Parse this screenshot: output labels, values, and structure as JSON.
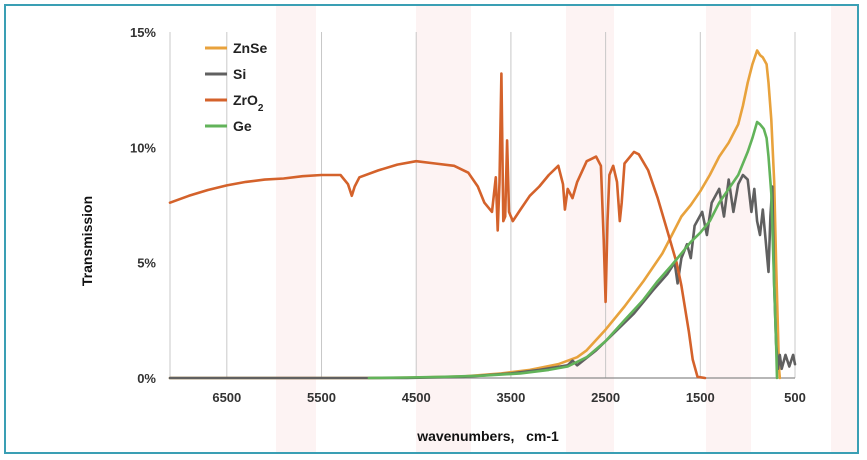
{
  "chart_data": {
    "type": "line",
    "xlabel": "wavenumbers,   cm-1",
    "ylabel": "Transmission",
    "xlim": [
      7100,
      500
    ],
    "ylim": [
      0,
      15
    ],
    "x_ticks": [
      6500,
      5500,
      4500,
      3500,
      2500,
      1500,
      500
    ],
    "x_tick_labels": [
      "6500",
      "5500",
      "4500",
      "3500",
      "2500",
      "1500",
      "500"
    ],
    "y_ticks": [
      0,
      5,
      10,
      15
    ],
    "y_tick_labels": [
      "0%",
      "5%",
      "10%",
      "15%"
    ],
    "grid": "vertical",
    "legend_position": "top-left",
    "series": [
      {
        "name": "ZnSe",
        "color": "#e8a23c",
        "points": [
          [
            7100,
            0
          ],
          [
            5000,
            0
          ],
          [
            4500,
            0.02
          ],
          [
            4000,
            0.07
          ],
          [
            3600,
            0.2
          ],
          [
            3300,
            0.35
          ],
          [
            3000,
            0.6
          ],
          [
            2800,
            0.9
          ],
          [
            2700,
            1.2
          ],
          [
            2500,
            2.1
          ],
          [
            2300,
            3.1
          ],
          [
            2100,
            4.2
          ],
          [
            1900,
            5.4
          ],
          [
            1800,
            6.2
          ],
          [
            1700,
            7.0
          ],
          [
            1600,
            7.5
          ],
          [
            1500,
            8.1
          ],
          [
            1400,
            8.8
          ],
          [
            1300,
            9.6
          ],
          [
            1200,
            10.2
          ],
          [
            1100,
            11.0
          ],
          [
            1050,
            11.8
          ],
          [
            1000,
            12.8
          ],
          [
            950,
            13.6
          ],
          [
            900,
            14.2
          ],
          [
            870,
            14.0
          ],
          [
            840,
            13.9
          ],
          [
            800,
            13.6
          ],
          [
            780,
            12.8
          ],
          [
            750,
            11.2
          ],
          [
            720,
            8.5
          ],
          [
            700,
            5.0
          ],
          [
            680,
            2.0
          ],
          [
            670,
            0.5
          ],
          [
            660,
            0
          ]
        ]
      },
      {
        "name": "Si",
        "color": "#606060",
        "points": [
          [
            7100,
            0
          ],
          [
            4600,
            0
          ],
          [
            4000,
            0.05
          ],
          [
            3500,
            0.2
          ],
          [
            3200,
            0.35
          ],
          [
            2900,
            0.55
          ],
          [
            2850,
            0.75
          ],
          [
            2800,
            0.55
          ],
          [
            2600,
            1.2
          ],
          [
            2400,
            2.0
          ],
          [
            2200,
            2.8
          ],
          [
            2000,
            3.8
          ],
          [
            1850,
            4.5
          ],
          [
            1770,
            5.0
          ],
          [
            1740,
            4.1
          ],
          [
            1700,
            5.2
          ],
          [
            1640,
            5.8
          ],
          [
            1600,
            5.2
          ],
          [
            1560,
            6.6
          ],
          [
            1480,
            7.2
          ],
          [
            1430,
            6.2
          ],
          [
            1380,
            7.6
          ],
          [
            1300,
            8.2
          ],
          [
            1250,
            7.0
          ],
          [
            1200,
            8.6
          ],
          [
            1150,
            7.2
          ],
          [
            1100,
            8.4
          ],
          [
            1050,
            8.8
          ],
          [
            1000,
            8.6
          ],
          [
            960,
            7.2
          ],
          [
            930,
            8.2
          ],
          [
            900,
            6.8
          ],
          [
            870,
            6.2
          ],
          [
            840,
            7.3
          ],
          [
            810,
            6.0
          ],
          [
            780,
            4.6
          ],
          [
            760,
            7.0
          ],
          [
            740,
            8.3
          ],
          [
            720,
            4.0
          ],
          [
            700,
            1.5
          ],
          [
            680,
            0.4
          ],
          [
            660,
            1.0
          ],
          [
            640,
            0.4
          ],
          [
            600,
            1.0
          ],
          [
            560,
            0.5
          ],
          [
            520,
            1.0
          ],
          [
            500,
            0.6
          ]
        ]
      },
      {
        "name": "ZrO2",
        "color": "#d4622b",
        "points": [
          [
            7100,
            7.6
          ],
          [
            6900,
            7.9
          ],
          [
            6700,
            8.15
          ],
          [
            6500,
            8.35
          ],
          [
            6300,
            8.5
          ],
          [
            6100,
            8.6
          ],
          [
            5900,
            8.65
          ],
          [
            5700,
            8.75
          ],
          [
            5500,
            8.8
          ],
          [
            5300,
            8.8
          ],
          [
            5220,
            8.4
          ],
          [
            5180,
            7.9
          ],
          [
            5150,
            8.3
          ],
          [
            5100,
            8.7
          ],
          [
            4900,
            9.0
          ],
          [
            4700,
            9.25
          ],
          [
            4500,
            9.4
          ],
          [
            4300,
            9.3
          ],
          [
            4100,
            9.2
          ],
          [
            3950,
            8.9
          ],
          [
            3850,
            8.3
          ],
          [
            3780,
            7.6
          ],
          [
            3700,
            7.2
          ],
          [
            3660,
            8.7
          ],
          [
            3640,
            6.4
          ],
          [
            3620,
            8.5
          ],
          [
            3600,
            13.2
          ],
          [
            3580,
            6.8
          ],
          [
            3560,
            7.0
          ],
          [
            3540,
            10.3
          ],
          [
            3520,
            7.2
          ],
          [
            3480,
            6.8
          ],
          [
            3400,
            7.3
          ],
          [
            3300,
            7.9
          ],
          [
            3200,
            8.3
          ],
          [
            3100,
            8.8
          ],
          [
            3000,
            9.2
          ],
          [
            2950,
            8.4
          ],
          [
            2930,
            7.3
          ],
          [
            2900,
            8.2
          ],
          [
            2850,
            7.8
          ],
          [
            2800,
            8.5
          ],
          [
            2700,
            9.4
          ],
          [
            2650,
            9.5
          ],
          [
            2600,
            9.6
          ],
          [
            2550,
            9.2
          ],
          [
            2520,
            6.0
          ],
          [
            2500,
            3.3
          ],
          [
            2480,
            6.8
          ],
          [
            2460,
            8.8
          ],
          [
            2420,
            9.2
          ],
          [
            2380,
            8.5
          ],
          [
            2350,
            6.8
          ],
          [
            2330,
            7.6
          ],
          [
            2300,
            9.3
          ],
          [
            2200,
            9.8
          ],
          [
            2150,
            9.7
          ],
          [
            2050,
            9.0
          ],
          [
            1950,
            7.8
          ],
          [
            1850,
            6.4
          ],
          [
            1750,
            5.0
          ],
          [
            1700,
            4.0
          ],
          [
            1620,
            2.0
          ],
          [
            1580,
            0.8
          ],
          [
            1530,
            0.05
          ],
          [
            1450,
            0
          ]
        ]
      },
      {
        "name": "Ge",
        "color": "#62b35a",
        "points": [
          [
            5000,
            0
          ],
          [
            4600,
            0.02
          ],
          [
            4200,
            0.05
          ],
          [
            3800,
            0.1
          ],
          [
            3400,
            0.2
          ],
          [
            3100,
            0.35
          ],
          [
            2900,
            0.5
          ],
          [
            2700,
            0.9
          ],
          [
            2500,
            1.6
          ],
          [
            2300,
            2.5
          ],
          [
            2100,
            3.4
          ],
          [
            1950,
            4.2
          ],
          [
            1800,
            4.9
          ],
          [
            1700,
            5.4
          ],
          [
            1600,
            5.9
          ],
          [
            1500,
            6.3
          ],
          [
            1400,
            6.8
          ],
          [
            1300,
            7.6
          ],
          [
            1200,
            8.2
          ],
          [
            1100,
            8.8
          ],
          [
            1000,
            9.8
          ],
          [
            950,
            10.4
          ],
          [
            900,
            11.1
          ],
          [
            870,
            11.0
          ],
          [
            830,
            10.8
          ],
          [
            800,
            10.4
          ],
          [
            780,
            9.6
          ],
          [
            750,
            8.0
          ],
          [
            720,
            4.0
          ],
          [
            700,
            1.5
          ],
          [
            690,
            0
          ]
        ]
      }
    ]
  }
}
